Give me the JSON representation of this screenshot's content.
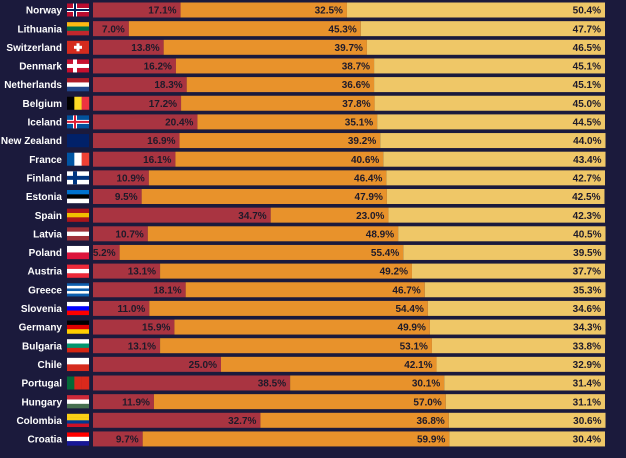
{
  "chart_data": {
    "type": "bar",
    "orientation": "horizontal",
    "stacked": true,
    "categories": [
      "Norway",
      "Lithuania",
      "Switzerland",
      "Denmark",
      "Netherlands",
      "Belgium",
      "Iceland",
      "New Zealand",
      "France",
      "Finland",
      "Estonia",
      "Spain",
      "Latvia",
      "Poland",
      "Austria",
      "Greece",
      "Slovenia",
      "Germany",
      "Bulgaria",
      "Chile",
      "Portugal",
      "Hungary",
      "Colombia",
      "Croatia"
    ],
    "series": [
      {
        "color": "#a93441",
        "values": [
          17.1,
          7.0,
          13.8,
          16.2,
          18.3,
          17.2,
          20.4,
          16.9,
          16.1,
          10.9,
          9.5,
          34.7,
          10.7,
          5.2,
          13.1,
          18.1,
          11.0,
          15.9,
          13.1,
          25.0,
          38.5,
          11.9,
          32.7,
          9.7
        ],
        "value_labels": [
          "17.1%",
          "7.0%",
          "13.8%",
          "16.2%",
          "18.3%",
          "17.2%",
          "20.4%",
          "16.9%",
          "16.1%",
          "10.9%",
          "9.5%",
          "34.7%",
          "10.7%",
          "5.2%",
          "13.1%",
          "18.1%",
          "11.0%",
          "15.9%",
          "13.1%",
          "25.0%",
          "38.5%",
          "11.9%",
          "32.7%",
          "9.7%"
        ]
      },
      {
        "color": "#e8922b",
        "values": [
          32.5,
          45.3,
          39.7,
          38.7,
          36.6,
          37.8,
          35.1,
          39.2,
          40.6,
          46.4,
          47.9,
          23.0,
          48.9,
          55.4,
          49.2,
          46.7,
          54.4,
          49.9,
          53.1,
          42.1,
          30.1,
          57.0,
          36.8,
          59.9
        ],
        "value_labels": [
          "32.5%",
          "45.3%",
          "39.7%",
          "38.7%",
          "36.6%",
          "37.8%",
          "35.1%",
          "39.2%",
          "40.6%",
          "46.4%",
          "47.9%",
          "23.0%",
          "48.9%",
          "55.4%",
          "49.2%",
          "46.7%",
          "54.4%",
          "49.9%",
          "53.1%",
          "42.1%",
          "30.1%",
          "57.0%",
          "36.8%",
          "59.9%"
        ]
      },
      {
        "color": "#efc767",
        "values": [
          50.4,
          47.7,
          46.5,
          45.1,
          45.1,
          45.0,
          44.5,
          44.0,
          43.4,
          42.7,
          42.5,
          42.3,
          40.5,
          39.5,
          37.7,
          35.3,
          34.6,
          34.3,
          33.8,
          32.9,
          31.4,
          31.1,
          30.6,
          30.4
        ],
        "value_labels": [
          "50.4%",
          "47.7%",
          "46.5%",
          "45.1%",
          "45.1%",
          "45.0%",
          "44.5%",
          "44.0%",
          "43.4%",
          "42.7%",
          "42.5%",
          "42.3%",
          "40.5%",
          "39.5%",
          "37.7%",
          "35.3%",
          "34.6%",
          "34.3%",
          "33.8%",
          "32.9%",
          "31.4%",
          "31.1%",
          "30.6%",
          "30.4%"
        ]
      }
    ]
  }
}
